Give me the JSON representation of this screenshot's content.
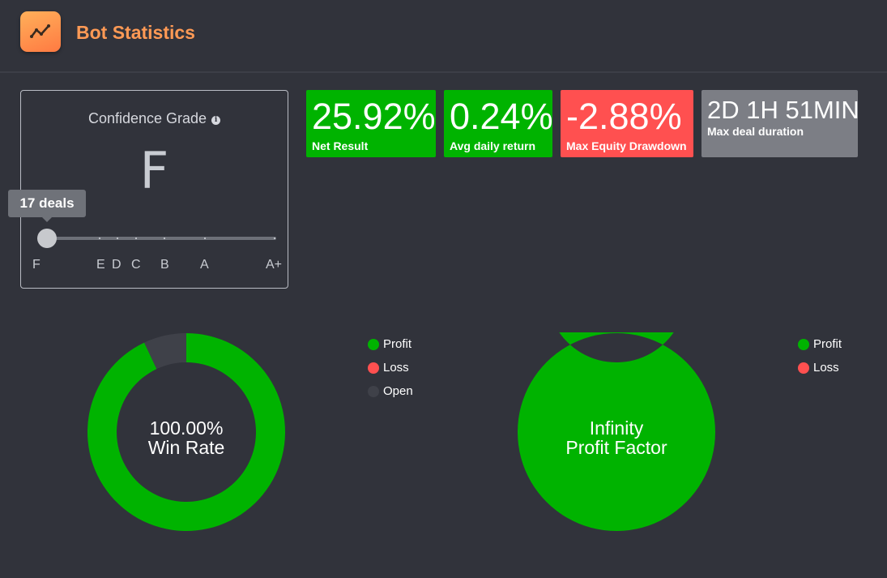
{
  "header": {
    "title": "Bot Statistics",
    "logo_icon": "trend-line-icon"
  },
  "confidence": {
    "label": "Confidence Grade",
    "info_icon": "info-icon",
    "grade": "F",
    "deals_tooltip": "17 deals",
    "scale_labels": [
      "F",
      "E",
      "D",
      "C",
      "B",
      "A",
      "A+"
    ],
    "current_position": 0
  },
  "stats": [
    {
      "value": "25.92%",
      "label": "Net Result",
      "color": "#00b300"
    },
    {
      "value": "0.24%",
      "label": "Avg daily return",
      "color": "#00b300"
    },
    {
      "value": "-2.88%",
      "label": "Max Equity Drawdown",
      "color": "#ff5050"
    },
    {
      "value": "2D 1H 51MIN",
      "label": "Max deal duration",
      "color": "#7c7e85"
    }
  ],
  "win_rate": {
    "value": "100.00%",
    "label": "Win Rate",
    "segments": [
      {
        "name": "Profit",
        "fraction": 0.93,
        "color": "#00b300"
      },
      {
        "name": "Open",
        "fraction": 0.07,
        "color": "#3f4149"
      }
    ],
    "legend": [
      {
        "name": "Profit",
        "color": "#00b300"
      },
      {
        "name": "Loss",
        "color": "#ff5050"
      },
      {
        "name": "Open",
        "color": "#3f4149"
      }
    ]
  },
  "profit_factor": {
    "value": "Infinity",
    "label": "Profit Factor",
    "segments": [
      {
        "name": "Profit",
        "fraction": 1.0,
        "color": "#00b300"
      }
    ],
    "legend": [
      {
        "name": "Profit",
        "color": "#00b300"
      },
      {
        "name": "Loss",
        "color": "#ff5050"
      }
    ]
  }
}
